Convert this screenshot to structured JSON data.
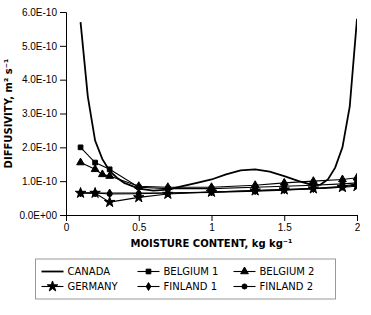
{
  "chart_data": {
    "type": "line",
    "xlabel": "MOISTURE CONTENT, kg kg⁻¹",
    "ylabel": "DIFFUSIVITY, m² s⁻¹",
    "xlim": [
      0,
      2.0
    ],
    "ylim": [
      0.0,
      6e-10
    ],
    "xticks": [
      0,
      0.5,
      1,
      1.5,
      2
    ],
    "yticks": [
      {
        "value": 0,
        "label": "0.0E+00"
      },
      {
        "value": 1e-10,
        "label": "1.0E-10"
      },
      {
        "value": 2e-10,
        "label": "2.0E-10"
      },
      {
        "value": 3e-10,
        "label": "3.0E-10"
      },
      {
        "value": 4e-10,
        "label": "4.0E-10"
      },
      {
        "value": 5e-10,
        "label": "5.0E-10"
      },
      {
        "value": 6e-10,
        "label": "6.0E-10"
      }
    ],
    "grid": false,
    "legend": "bottom",
    "series": [
      {
        "name": "CANADA",
        "color": "#000000",
        "marker": "none",
        "line_style": "solid",
        "x": [
          0.1,
          0.15,
          0.2,
          0.25,
          0.3,
          0.35,
          0.4,
          0.5,
          0.6,
          0.7,
          0.8,
          0.9,
          1.0,
          1.1,
          1.2,
          1.3,
          1.4,
          1.5,
          1.6,
          1.7,
          1.75,
          1.8,
          1.85,
          1.9,
          1.95,
          2.0
        ],
        "values": [
          5.7e-10,
          3.5e-10,
          2.2e-10,
          1.65e-10,
          1.3e-10,
          1.1e-10,
          9.5e-11,
          7.8e-11,
          7.2e-11,
          7.5e-11,
          8.5e-11,
          9.5e-11,
          1.05e-10,
          1.2e-10,
          1.32e-10,
          1.35e-10,
          1.28e-10,
          1.15e-10,
          1e-10,
          8.8e-11,
          9e-11,
          1.05e-10,
          1.4e-10,
          2e-10,
          3.2e-10,
          5.8e-10
        ]
      },
      {
        "name": "BELGIUM 1",
        "color": "#000000",
        "marker": "square",
        "line_style": "solid",
        "x": [
          0.1,
          0.2,
          0.3,
          0.5,
          0.7,
          1.0,
          1.3,
          1.5,
          1.7,
          1.9,
          2.0
        ],
        "values": [
          2e-10,
          1.55e-10,
          1.35e-10,
          8.2e-11,
          7.8e-11,
          7.8e-11,
          8.2e-11,
          8.5e-11,
          8.8e-11,
          9.2e-11,
          9.5e-11
        ]
      },
      {
        "name": "BELGIUM 2",
        "color": "#000000",
        "marker": "triangle",
        "line_style": "solid",
        "x": [
          0.1,
          0.2,
          0.25,
          0.3,
          0.5,
          0.7,
          1.0,
          1.3,
          1.5,
          1.7,
          1.9,
          2.0
        ],
        "values": [
          1.55e-10,
          1.35e-10,
          1.2e-10,
          1.15e-10,
          8.5e-11,
          8.2e-11,
          8.2e-11,
          8.8e-11,
          9.5e-11,
          1e-10,
          1.05e-10,
          1.1e-10
        ]
      },
      {
        "name": "GERMANY",
        "color": "#000000",
        "marker": "star",
        "line_style": "solid",
        "x": [
          0.1,
          0.2,
          0.3,
          0.5,
          0.7,
          1.0,
          1.3,
          1.5,
          1.7,
          1.9,
          2.0
        ],
        "values": [
          6.5e-11,
          6.5e-11,
          3.8e-11,
          5.2e-11,
          6.2e-11,
          6.8e-11,
          7.2e-11,
          7.5e-11,
          7.8e-11,
          8.2e-11,
          8.5e-11
        ]
      },
      {
        "name": "FINLAND 1",
        "color": "#000000",
        "marker": "diamond",
        "line_style": "solid",
        "x": [
          0.1,
          0.2,
          0.3,
          0.5,
          0.7,
          1.0,
          1.3,
          1.5,
          1.7,
          1.9,
          2.0
        ],
        "values": [
          6.5e-11,
          6.5e-11,
          6.5e-11,
          6.5e-11,
          6.5e-11,
          6.8e-11,
          7.2e-11,
          7.5e-11,
          7.8e-11,
          8.5e-11,
          9.2e-11
        ]
      },
      {
        "name": "FINLAND 2",
        "color": "#000000",
        "marker": "circle",
        "line_style": "solid",
        "x": [
          0.1,
          0.2,
          0.3,
          0.5,
          0.7,
          1.0,
          1.3,
          1.5,
          1.7,
          1.9,
          2.0
        ],
        "values": [
          6.5e-11,
          6.5e-11,
          6.2e-11,
          6.3e-11,
          6.5e-11,
          6.7e-11,
          7e-11,
          7.3e-11,
          7.8e-11,
          8.2e-11,
          9e-11
        ]
      }
    ]
  }
}
